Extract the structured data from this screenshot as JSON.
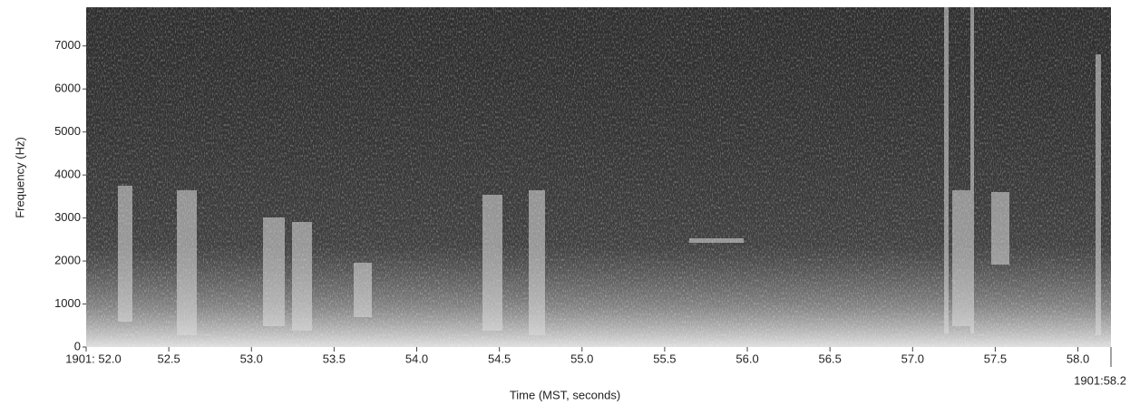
{
  "chart_data": {
    "type": "spectrogram",
    "xlabel": "Time (MST, seconds)",
    "ylabel": "Frequency (Hz)",
    "xlim": [
      52,
      58.2
    ],
    "ylim": [
      0,
      7900
    ],
    "xticks": [
      {
        "value": 52,
        "label": "1901: 52.0"
      },
      52.5,
      {
        "value": 53,
        "label": "53.0"
      },
      53.5,
      {
        "value": 54,
        "label": "54.0"
      },
      54.5,
      {
        "value": 55,
        "label": "55.0"
      },
      55.5,
      {
        "value": 56,
        "label": "56.0"
      },
      56.5,
      {
        "value": 57,
        "label": "57.0"
      },
      57.5,
      {
        "value": 58,
        "label": "58.0"
      },
      {
        "value": 58.2,
        "label": "1901:58.2"
      }
    ],
    "yticks": [
      0,
      1000,
      2000,
      3000,
      4000,
      5000,
      6000,
      7000
    ]
  }
}
